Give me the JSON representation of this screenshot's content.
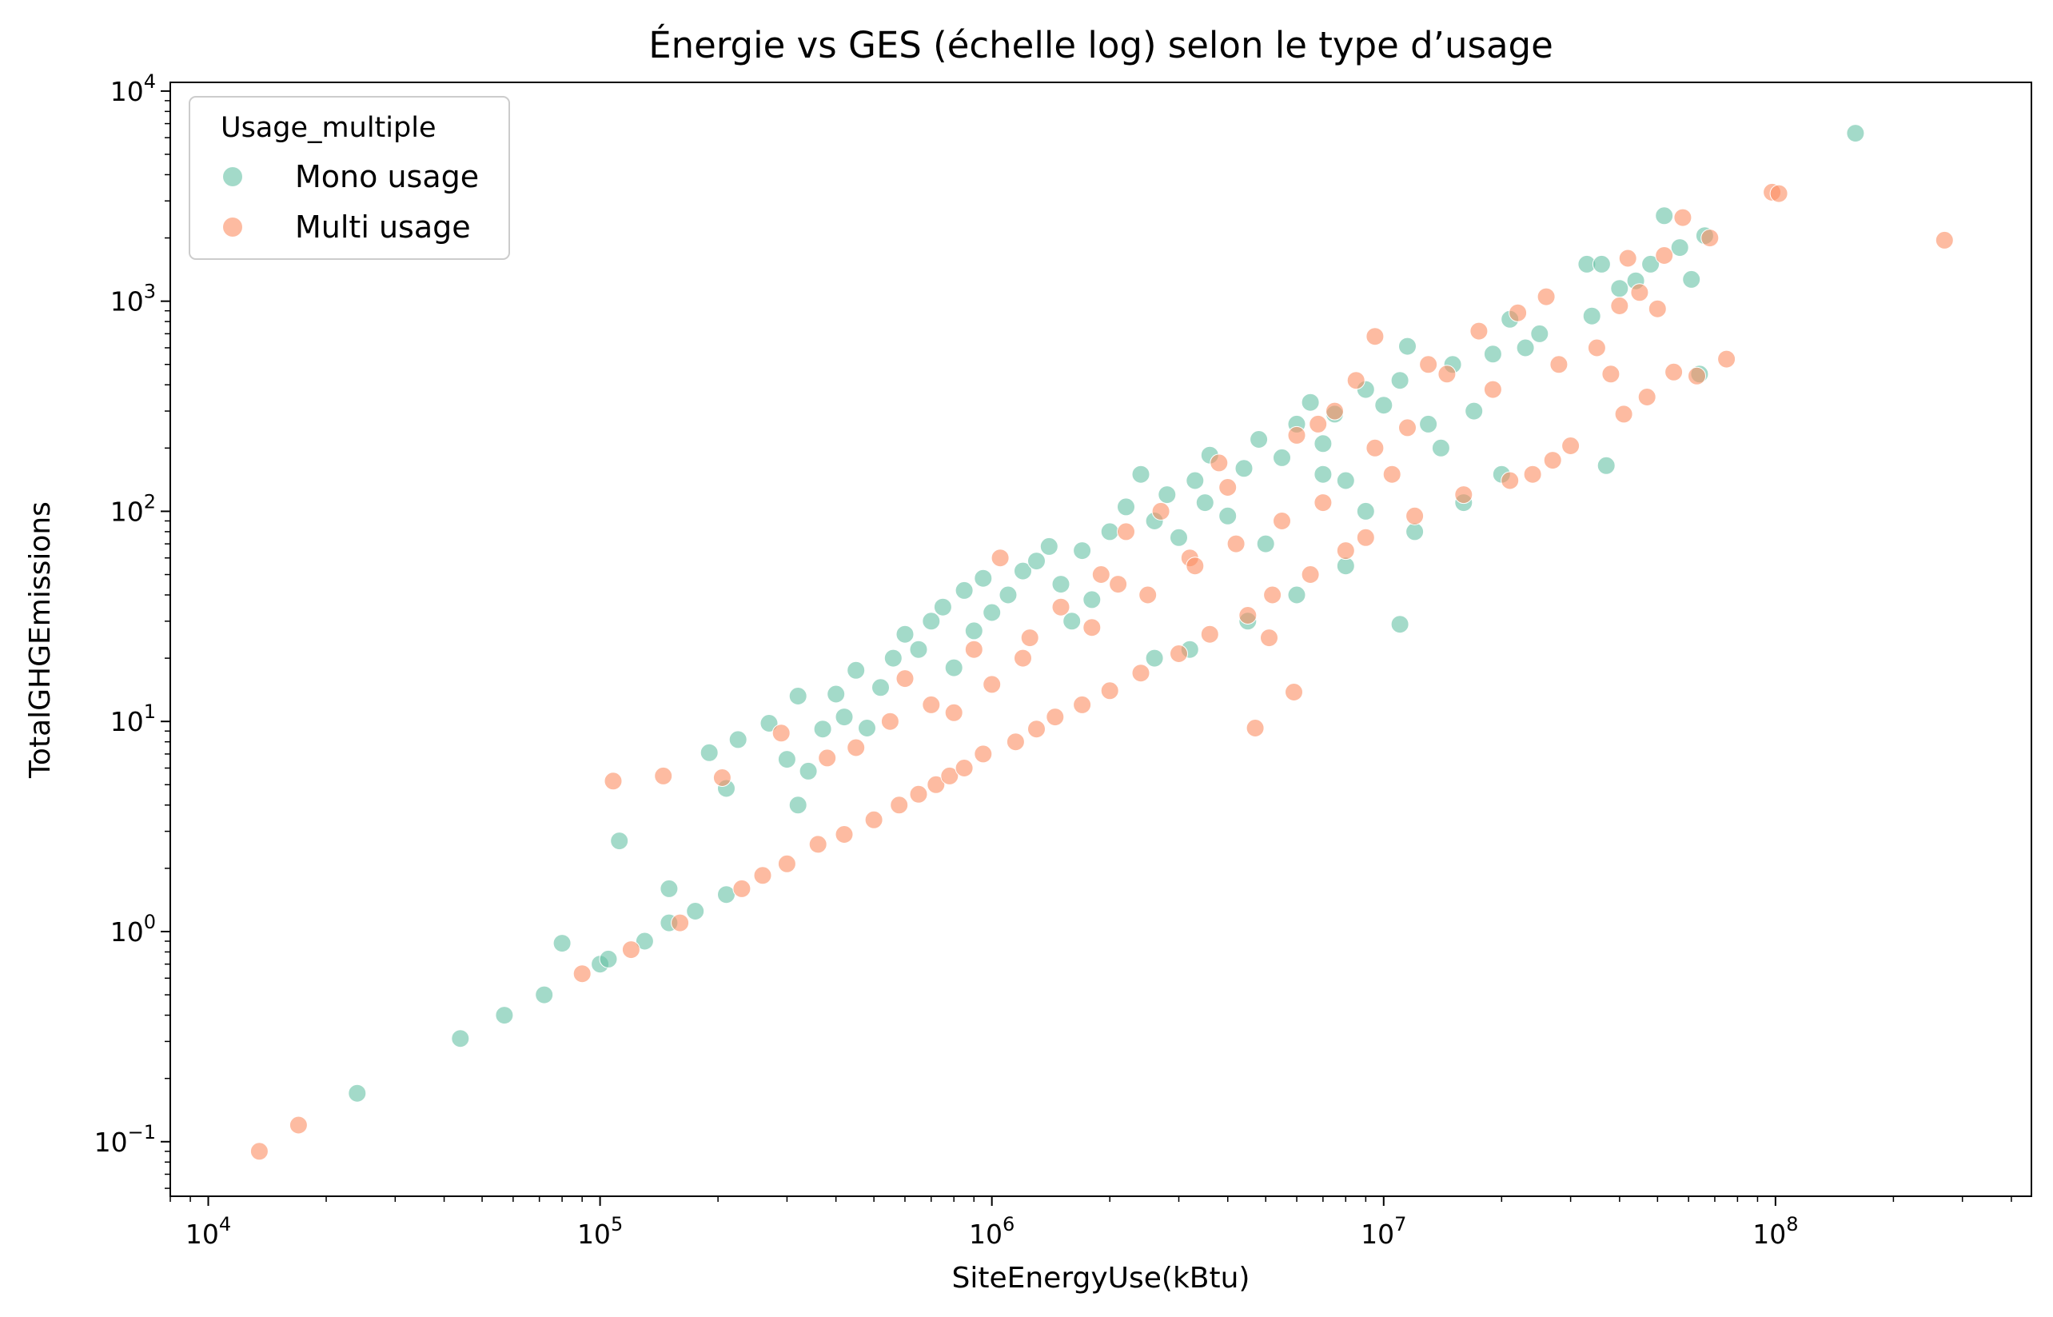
{
  "chart_data": {
    "type": "scatter",
    "title": "Énergie vs GES (échelle log) selon le type d’usage",
    "xlabel": "SiteEnergyUse(kBtu)",
    "ylabel": "TotalGHGEmissions",
    "xscale": "log",
    "yscale": "log",
    "xlim": [
      8000,
      450000000
    ],
    "ylim": [
      0.055,
      11000
    ],
    "x_ticks": [
      {
        "value": 10000,
        "base": "10",
        "exp": "4"
      },
      {
        "value": 100000,
        "base": "10",
        "exp": "5"
      },
      {
        "value": 1000000,
        "base": "10",
        "exp": "6"
      },
      {
        "value": 10000000,
        "base": "10",
        "exp": "7"
      },
      {
        "value": 100000000,
        "base": "10",
        "exp": "8"
      }
    ],
    "y_ticks": [
      {
        "value": 0.1,
        "base": "10",
        "exp": "−1"
      },
      {
        "value": 1,
        "base": "10",
        "exp": "0"
      },
      {
        "value": 10,
        "base": "10",
        "exp": "1"
      },
      {
        "value": 100,
        "base": "10",
        "exp": "2"
      },
      {
        "value": 1000,
        "base": "10",
        "exp": "3"
      },
      {
        "value": 10000,
        "base": "10",
        "exp": "4"
      }
    ],
    "grid": false,
    "legend": {
      "title": "Usage_multiple",
      "position": "top-left"
    },
    "series": [
      {
        "name": "Mono usage",
        "color": "#66c2a5",
        "points": [
          [
            24000,
            0.17
          ],
          [
            44000,
            0.31
          ],
          [
            57000,
            0.4
          ],
          [
            72000,
            0.5
          ],
          [
            80000,
            0.88
          ],
          [
            100000,
            0.7
          ],
          [
            105000,
            0.74
          ],
          [
            130000,
            0.9
          ],
          [
            150000,
            1.1
          ],
          [
            175000,
            1.25
          ],
          [
            210000,
            1.5
          ],
          [
            112000,
            2.7
          ],
          [
            150000,
            1.6
          ],
          [
            190000,
            7.1
          ],
          [
            210000,
            4.8
          ],
          [
            225000,
            8.2
          ],
          [
            270000,
            9.8
          ],
          [
            300000,
            6.6
          ],
          [
            320000,
            4.0
          ],
          [
            320000,
            13.2
          ],
          [
            340000,
            5.8
          ],
          [
            370000,
            9.2
          ],
          [
            400000,
            13.5
          ],
          [
            420000,
            10.5
          ],
          [
            450000,
            17.5
          ],
          [
            480000,
            9.3
          ],
          [
            520000,
            14.5
          ],
          [
            560000,
            20.0
          ],
          [
            600000,
            26.0
          ],
          [
            650000,
            22.0
          ],
          [
            700000,
            30.0
          ],
          [
            750000,
            35.0
          ],
          [
            800000,
            18.0
          ],
          [
            850000,
            42.0
          ],
          [
            900000,
            27.0
          ],
          [
            950000,
            48.0
          ],
          [
            1000000,
            33.0
          ],
          [
            1100000,
            40.0
          ],
          [
            1200000,
            52.0
          ],
          [
            1300000,
            58.0
          ],
          [
            1400000,
            68.0
          ],
          [
            1500000,
            45.0
          ],
          [
            1700000,
            65.0
          ],
          [
            1800000,
            38.0
          ],
          [
            2000000,
            80.0
          ],
          [
            2200000,
            105.0
          ],
          [
            2400000,
            150.0
          ],
          [
            2600000,
            90.0
          ],
          [
            2800000,
            120.0
          ],
          [
            3000000,
            75.0
          ],
          [
            3300000,
            140.0
          ],
          [
            3600000,
            185.0
          ],
          [
            4000000,
            95.0
          ],
          [
            4400000,
            160.0
          ],
          [
            4800000,
            220.0
          ],
          [
            5500000,
            180.0
          ],
          [
            6000000,
            260.0
          ],
          [
            6500000,
            330.0
          ],
          [
            7000000,
            210.0
          ],
          [
            7500000,
            290.0
          ],
          [
            8000000,
            140.0
          ],
          [
            9000000,
            380.0
          ],
          [
            10000000,
            320.0
          ],
          [
            11000000,
            420.0
          ],
          [
            11500000,
            610.0
          ],
          [
            13000000,
            260.0
          ],
          [
            15000000,
            500.0
          ],
          [
            17000000,
            300.0
          ],
          [
            19000000,
            560.0
          ],
          [
            21000000,
            820.0
          ],
          [
            23000000,
            600.0
          ],
          [
            25000000,
            700.0
          ],
          [
            33000000,
            1500.0
          ],
          [
            34000000,
            850.0
          ],
          [
            36000000,
            1500.0
          ],
          [
            37000000,
            165.0
          ],
          [
            40000000,
            1150.0
          ],
          [
            44000000,
            1250.0
          ],
          [
            48000000,
            1500.0
          ],
          [
            52000000,
            2550.0
          ],
          [
            57000000,
            1800.0
          ],
          [
            61000000,
            1270.0
          ],
          [
            64000000,
            450.0
          ],
          [
            66000000,
            2050.0
          ],
          [
            160000000,
            6300.0
          ],
          [
            11000000,
            29.0
          ],
          [
            2600000,
            20.0
          ],
          [
            3200000,
            22.0
          ],
          [
            4500000,
            30.0
          ],
          [
            6000000,
            40.0
          ],
          [
            8000000,
            55.0
          ],
          [
            12000000,
            80.0
          ],
          [
            16000000,
            110.0
          ],
          [
            20000000,
            150.0
          ],
          [
            3500000,
            110.0
          ],
          [
            5000000,
            70.0
          ],
          [
            7000000,
            150.0
          ],
          [
            9000000,
            100.0
          ],
          [
            14000000,
            200.0
          ],
          [
            1600000,
            30.0
          ]
        ]
      },
      {
        "name": "Multi usage",
        "color": "#fc8d62",
        "points": [
          [
            13500,
            0.09
          ],
          [
            17000,
            0.12
          ],
          [
            90000,
            0.63
          ],
          [
            120000,
            0.82
          ],
          [
            108000,
            5.2
          ],
          [
            145000,
            5.5
          ],
          [
            205000,
            5.4
          ],
          [
            160000,
            1.1
          ],
          [
            230000,
            1.6
          ],
          [
            260000,
            1.85
          ],
          [
            290000,
            8.8
          ],
          [
            300000,
            2.1
          ],
          [
            360000,
            2.6
          ],
          [
            380000,
            6.7
          ],
          [
            420000,
            2.9
          ],
          [
            450000,
            7.5
          ],
          [
            500000,
            3.4
          ],
          [
            550000,
            10.0
          ],
          [
            580000,
            4.0
          ],
          [
            650000,
            4.5
          ],
          [
            700000,
            12.0
          ],
          [
            720000,
            5.0
          ],
          [
            780000,
            5.5
          ],
          [
            850000,
            6.0
          ],
          [
            900000,
            22.0
          ],
          [
            950000,
            7.0
          ],
          [
            1000000,
            15.0
          ],
          [
            1050000,
            60.0
          ],
          [
            1150000,
            8.0
          ],
          [
            1250000,
            25.0
          ],
          [
            1300000,
            9.2
          ],
          [
            1450000,
            10.5
          ],
          [
            1500000,
            35.0
          ],
          [
            1700000,
            12.0
          ],
          [
            1900000,
            50.0
          ],
          [
            2000000,
            14.0
          ],
          [
            2200000,
            80.0
          ],
          [
            2400000,
            17.0
          ],
          [
            2700000,
            100.0
          ],
          [
            3000000,
            21.0
          ],
          [
            3200000,
            60.0
          ],
          [
            3600000,
            26.0
          ],
          [
            4000000,
            130.0
          ],
          [
            4500000,
            32.0
          ],
          [
            4700000,
            9.3
          ],
          [
            5100000,
            25.0
          ],
          [
            5200000,
            40.0
          ],
          [
            5900000,
            13.8
          ],
          [
            6000000,
            230.0
          ],
          [
            6500000,
            50.0
          ],
          [
            7500000,
            300.0
          ],
          [
            8000000,
            65.0
          ],
          [
            8500000,
            420.0
          ],
          [
            9000000,
            75.0
          ],
          [
            9500000,
            680.0
          ],
          [
            10500000,
            150.0
          ],
          [
            12000000,
            95.0
          ],
          [
            13000000,
            500.0
          ],
          [
            14500000,
            450.0
          ],
          [
            16000000,
            120.0
          ],
          [
            17500000,
            720.0
          ],
          [
            19000000,
            380.0
          ],
          [
            21000000,
            140.0
          ],
          [
            22000000,
            880.0
          ],
          [
            24000000,
            150.0
          ],
          [
            26000000,
            1050.0
          ],
          [
            27000000,
            175.0
          ],
          [
            28000000,
            500.0
          ],
          [
            30000000,
            205.0
          ],
          [
            35000000,
            600.0
          ],
          [
            38000000,
            450.0
          ],
          [
            40000000,
            950.0
          ],
          [
            41000000,
            290.0
          ],
          [
            42000000,
            1600.0
          ],
          [
            45000000,
            1100.0
          ],
          [
            47000000,
            350.0
          ],
          [
            50000000,
            920.0
          ],
          [
            52000000,
            1650.0
          ],
          [
            55000000,
            460.0
          ],
          [
            58000000,
            2500.0
          ],
          [
            63000000,
            440.0
          ],
          [
            68000000,
            2000.0
          ],
          [
            75000000,
            530.0
          ],
          [
            98000000,
            3300.0
          ],
          [
            102000000,
            3250.0
          ],
          [
            270000000,
            1950.0
          ],
          [
            2500000,
            40.0
          ],
          [
            3300000,
            55.0
          ],
          [
            4200000,
            70.0
          ],
          [
            5500000,
            90.0
          ],
          [
            7000000,
            110.0
          ],
          [
            9500000,
            200.0
          ],
          [
            11500000,
            250.0
          ],
          [
            1200000,
            20.0
          ],
          [
            1800000,
            28.0
          ],
          [
            600000,
            16.0
          ],
          [
            800000,
            11.0
          ],
          [
            2100000,
            45.0
          ],
          [
            3800000,
            170.0
          ],
          [
            6800000,
            260.0
          ]
        ]
      }
    ]
  }
}
